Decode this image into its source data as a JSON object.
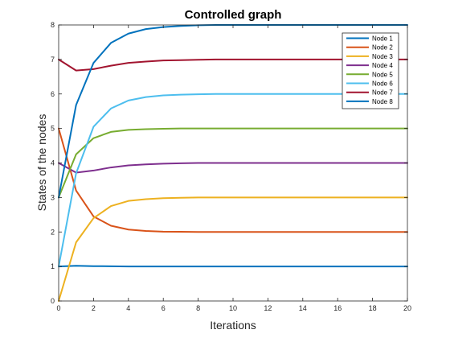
{
  "chart_data": {
    "type": "line",
    "title": "Controlled graph",
    "xlabel": "Iterations",
    "ylabel": "States of the nodes",
    "xlim": [
      0,
      20
    ],
    "ylim": [
      0,
      8
    ],
    "x_ticks": [
      "0",
      "2",
      "4",
      "6",
      "8",
      "10",
      "12",
      "14",
      "16",
      "18",
      "20"
    ],
    "y_ticks": [
      "0",
      "1",
      "2",
      "3",
      "4",
      "5",
      "6",
      "7",
      "8"
    ],
    "grid": false,
    "legend_position": "top-right",
    "x": [
      0,
      1,
      2,
      3,
      4,
      5,
      6,
      7,
      8,
      9,
      10,
      11,
      12,
      13,
      14,
      15,
      16,
      17,
      18,
      19,
      20
    ],
    "series": [
      {
        "name": "Node 1",
        "color": "#0072BD",
        "values": [
          1.0,
          1.02,
          1.01,
          1.005,
          1.0,
          1.0,
          1.0,
          1.0,
          1.0,
          1.0,
          1.0,
          1.0,
          1.0,
          1.0,
          1.0,
          1.0,
          1.0,
          1.0,
          1.0,
          1.0,
          1.0
        ]
      },
      {
        "name": "Node 2",
        "color": "#D95319",
        "values": [
          5.0,
          3.2,
          2.45,
          2.18,
          2.07,
          2.03,
          2.01,
          2.005,
          2.0,
          2.0,
          2.0,
          2.0,
          2.0,
          2.0,
          2.0,
          2.0,
          2.0,
          2.0,
          2.0,
          2.0,
          2.0
        ]
      },
      {
        "name": "Node 3",
        "color": "#EDB120",
        "values": [
          0.0,
          1.7,
          2.4,
          2.75,
          2.9,
          2.95,
          2.98,
          2.99,
          3.0,
          3.0,
          3.0,
          3.0,
          3.0,
          3.0,
          3.0,
          3.0,
          3.0,
          3.0,
          3.0,
          3.0,
          3.0
        ]
      },
      {
        "name": "Node 4",
        "color": "#7E2F8E",
        "values": [
          4.0,
          3.72,
          3.78,
          3.87,
          3.93,
          3.96,
          3.98,
          3.99,
          4.0,
          4.0,
          4.0,
          4.0,
          4.0,
          4.0,
          4.0,
          4.0,
          4.0,
          4.0,
          4.0,
          4.0,
          4.0
        ]
      },
      {
        "name": "Node 5",
        "color": "#77AC30",
        "values": [
          3.0,
          4.25,
          4.72,
          4.9,
          4.96,
          4.98,
          4.99,
          5.0,
          5.0,
          5.0,
          5.0,
          5.0,
          5.0,
          5.0,
          5.0,
          5.0,
          5.0,
          5.0,
          5.0,
          5.0,
          5.0
        ]
      },
      {
        "name": "Node 6",
        "color": "#4DBEEE",
        "values": [
          1.0,
          3.7,
          5.05,
          5.58,
          5.81,
          5.91,
          5.96,
          5.98,
          5.99,
          6.0,
          6.0,
          6.0,
          6.0,
          6.0,
          6.0,
          6.0,
          6.0,
          6.0,
          6.0,
          6.0,
          6.0
        ]
      },
      {
        "name": "Node 7",
        "color": "#A2142F",
        "values": [
          7.0,
          6.68,
          6.72,
          6.82,
          6.9,
          6.94,
          6.97,
          6.98,
          6.99,
          7.0,
          7.0,
          7.0,
          7.0,
          7.0,
          7.0,
          7.0,
          7.0,
          7.0,
          7.0,
          7.0,
          7.0
        ]
      },
      {
        "name": "Node 8",
        "color": "#0072BD",
        "values": [
          3.0,
          5.68,
          6.9,
          7.48,
          7.75,
          7.88,
          7.94,
          7.97,
          7.99,
          8.0,
          8.0,
          8.0,
          8.0,
          8.0,
          8.0,
          8.0,
          8.0,
          8.0,
          8.0,
          8.0,
          8.0
        ]
      }
    ]
  }
}
